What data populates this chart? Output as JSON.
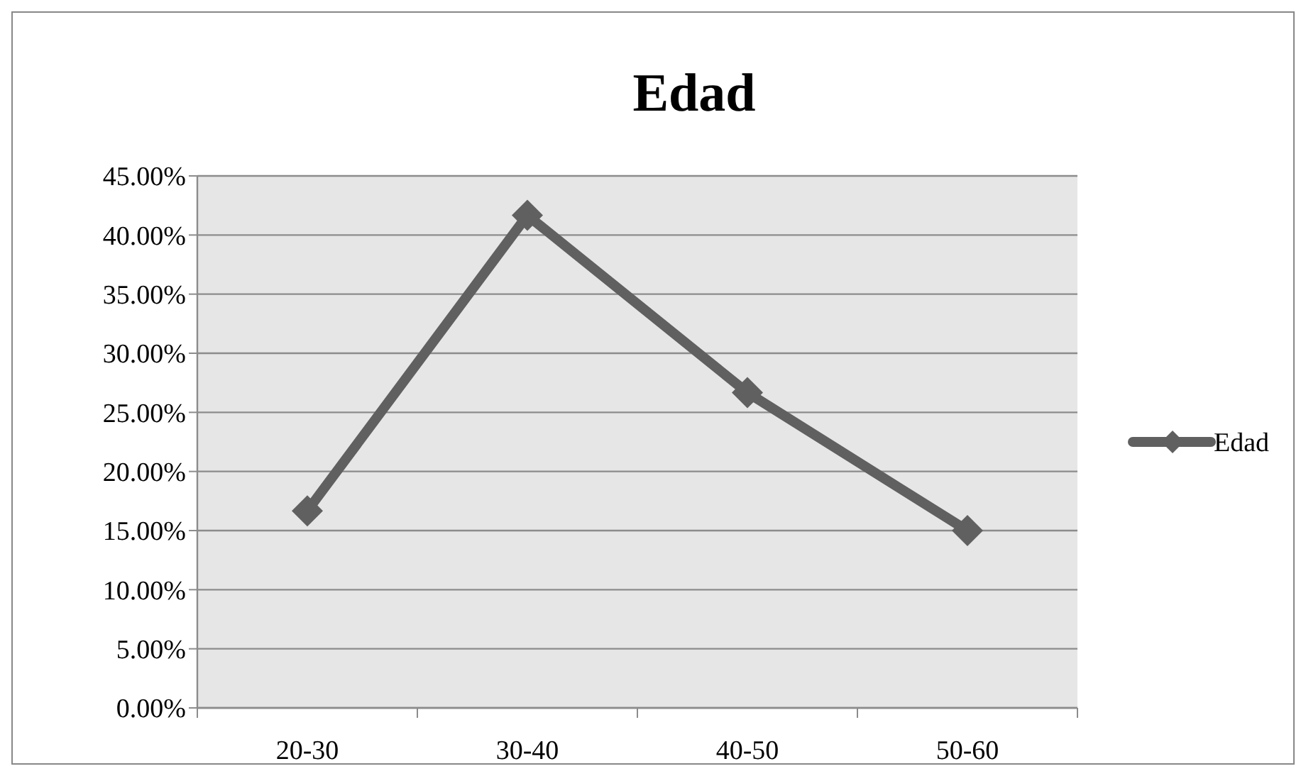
{
  "chart_data": {
    "type": "line",
    "title": "Edad",
    "categories": [
      "20-30",
      "30-40",
      "40-50",
      "50-60"
    ],
    "series": [
      {
        "name": "Edad",
        "color": "#606060",
        "values": [
          16.67,
          41.67,
          26.67,
          15.0
        ]
      }
    ],
    "ylim": [
      0,
      45
    ],
    "yticks": [
      {
        "value": 0,
        "label": "0.00%"
      },
      {
        "value": 5,
        "label": "5.00%"
      },
      {
        "value": 10,
        "label": "10.00%"
      },
      {
        "value": 15,
        "label": "15.00%"
      },
      {
        "value": 20,
        "label": "20.00%"
      },
      {
        "value": 25,
        "label": "25.00%"
      },
      {
        "value": 30,
        "label": "30.00%"
      },
      {
        "value": 35,
        "label": "35.00%"
      },
      {
        "value": 40,
        "label": "40.00%"
      },
      {
        "value": 45,
        "label": "45.00%"
      }
    ],
    "grid": "y",
    "legend": "right",
    "marker": "diamond",
    "line_style": "solid"
  }
}
